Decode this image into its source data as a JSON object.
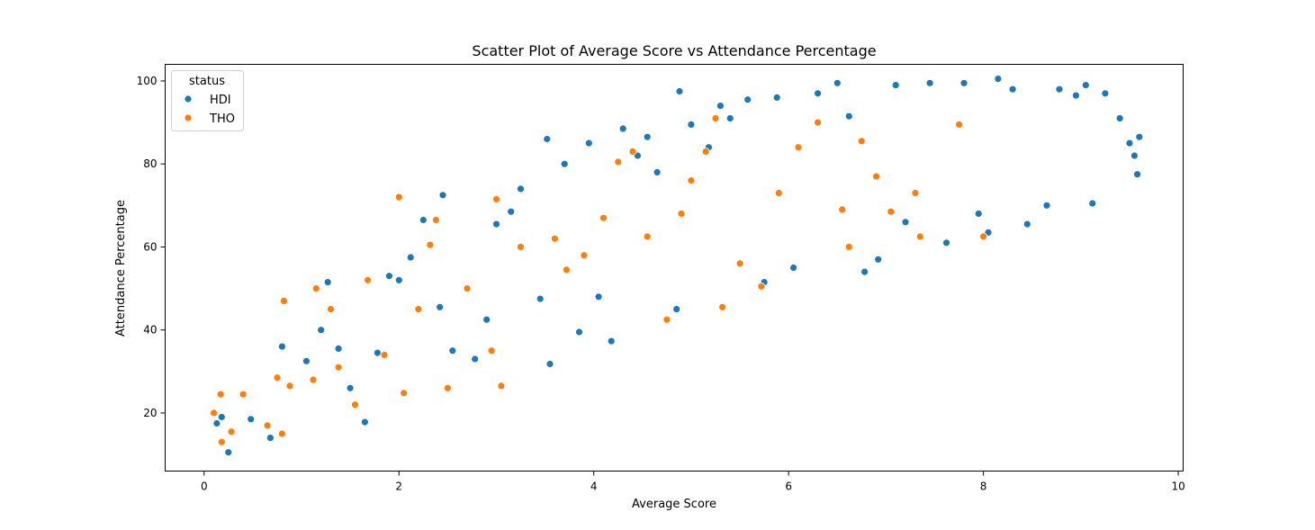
{
  "chart_data": {
    "type": "scatter",
    "title": "Scatter Plot of Average Score vs Attendance Percentage",
    "xlabel": "Average Score",
    "ylabel": "Attendance Percentage",
    "xlim": [
      -0.4,
      10.05
    ],
    "ylim": [
      6,
      104
    ],
    "xticks": [
      0,
      2,
      4,
      6,
      8,
      10
    ],
    "yticks": [
      20,
      40,
      60,
      80,
      100
    ],
    "grid": false,
    "legend": {
      "title": "status",
      "placement": "top-left",
      "entries": [
        "HDI",
        "THO"
      ]
    },
    "colors": {
      "HDI": "#1f77b4",
      "THO": "#ff7f0e"
    },
    "series": [
      {
        "name": "HDI",
        "points": [
          [
            0.13,
            17.5
          ],
          [
            0.18,
            19.0
          ],
          [
            0.25,
            10.5
          ],
          [
            0.48,
            18.5
          ],
          [
            0.68,
            14.0
          ],
          [
            0.8,
            36.0
          ],
          [
            1.05,
            32.5
          ],
          [
            1.2,
            40.0
          ],
          [
            1.27,
            51.5
          ],
          [
            1.38,
            35.5
          ],
          [
            1.5,
            26.0
          ],
          [
            1.65,
            17.8
          ],
          [
            1.78,
            34.5
          ],
          [
            1.9,
            53.0
          ],
          [
            2.0,
            52.0
          ],
          [
            2.12,
            57.5
          ],
          [
            2.25,
            66.5
          ],
          [
            2.42,
            45.5
          ],
          [
            2.45,
            72.5
          ],
          [
            2.55,
            35.0
          ],
          [
            2.78,
            33.0
          ],
          [
            2.9,
            42.5
          ],
          [
            3.0,
            65.5
          ],
          [
            3.15,
            68.5
          ],
          [
            3.25,
            74.0
          ],
          [
            3.45,
            47.5
          ],
          [
            3.52,
            86.0
          ],
          [
            3.55,
            31.8
          ],
          [
            3.7,
            80.0
          ],
          [
            3.85,
            39.5
          ],
          [
            3.95,
            85.0
          ],
          [
            4.05,
            48.0
          ],
          [
            4.18,
            37.3
          ],
          [
            4.3,
            88.5
          ],
          [
            4.45,
            82.0
          ],
          [
            4.55,
            86.5
          ],
          [
            4.65,
            78.0
          ],
          [
            4.85,
            45.0
          ],
          [
            4.88,
            97.5
          ],
          [
            5.0,
            89.5
          ],
          [
            5.18,
            84.0
          ],
          [
            5.3,
            94.0
          ],
          [
            5.4,
            91.0
          ],
          [
            5.58,
            95.5
          ],
          [
            5.75,
            51.5
          ],
          [
            5.88,
            96.0
          ],
          [
            6.05,
            55.0
          ],
          [
            6.3,
            97.0
          ],
          [
            6.5,
            99.5
          ],
          [
            6.62,
            91.5
          ],
          [
            6.78,
            54.0
          ],
          [
            6.92,
            57.0
          ],
          [
            7.1,
            99.0
          ],
          [
            7.2,
            66.0
          ],
          [
            7.45,
            99.5
          ],
          [
            7.62,
            61.0
          ],
          [
            7.8,
            99.5
          ],
          [
            7.95,
            68.0
          ],
          [
            8.05,
            63.5
          ],
          [
            8.15,
            100.5
          ],
          [
            8.3,
            98.0
          ],
          [
            8.45,
            65.5
          ],
          [
            8.65,
            70.0
          ],
          [
            8.78,
            98.0
          ],
          [
            8.95,
            96.5
          ],
          [
            9.05,
            99.0
          ],
          [
            9.12,
            70.5
          ],
          [
            9.25,
            97.0
          ],
          [
            9.4,
            91.0
          ],
          [
            9.5,
            85.0
          ],
          [
            9.55,
            82.0
          ],
          [
            9.58,
            77.5
          ],
          [
            9.6,
            86.5
          ]
        ]
      },
      {
        "name": "THO",
        "points": [
          [
            0.1,
            20.0
          ],
          [
            0.17,
            24.5
          ],
          [
            0.18,
            13.0
          ],
          [
            0.28,
            15.5
          ],
          [
            0.4,
            24.5
          ],
          [
            0.65,
            17.0
          ],
          [
            0.75,
            28.5
          ],
          [
            0.8,
            15.0
          ],
          [
            0.82,
            47.0
          ],
          [
            0.88,
            26.5
          ],
          [
            1.12,
            28.0
          ],
          [
            1.15,
            50.0
          ],
          [
            1.3,
            45.0
          ],
          [
            1.38,
            31.0
          ],
          [
            1.55,
            22.0
          ],
          [
            1.68,
            52.0
          ],
          [
            1.85,
            34.0
          ],
          [
            2.0,
            72.0
          ],
          [
            2.05,
            24.8
          ],
          [
            2.2,
            45.0
          ],
          [
            2.32,
            60.5
          ],
          [
            2.38,
            66.5
          ],
          [
            2.5,
            26.0
          ],
          [
            2.7,
            50.0
          ],
          [
            2.95,
            35.0
          ],
          [
            3.0,
            71.5
          ],
          [
            3.05,
            26.5
          ],
          [
            3.25,
            60.0
          ],
          [
            3.6,
            62.0
          ],
          [
            3.72,
            54.5
          ],
          [
            3.9,
            58.0
          ],
          [
            4.1,
            67.0
          ],
          [
            4.25,
            80.5
          ],
          [
            4.4,
            83.0
          ],
          [
            4.55,
            62.5
          ],
          [
            4.75,
            42.5
          ],
          [
            4.9,
            68.0
          ],
          [
            5.0,
            76.0
          ],
          [
            5.15,
            83.0
          ],
          [
            5.25,
            91.0
          ],
          [
            5.32,
            45.5
          ],
          [
            5.5,
            56.0
          ],
          [
            5.72,
            50.5
          ],
          [
            5.9,
            73.0
          ],
          [
            6.1,
            84.0
          ],
          [
            6.3,
            90.0
          ],
          [
            6.55,
            69.0
          ],
          [
            6.62,
            60.0
          ],
          [
            6.75,
            85.5
          ],
          [
            6.9,
            77.0
          ],
          [
            7.05,
            68.5
          ],
          [
            7.3,
            73.0
          ],
          [
            7.35,
            62.5
          ],
          [
            7.75,
            89.5
          ],
          [
            8.0,
            62.5
          ]
        ]
      }
    ]
  }
}
